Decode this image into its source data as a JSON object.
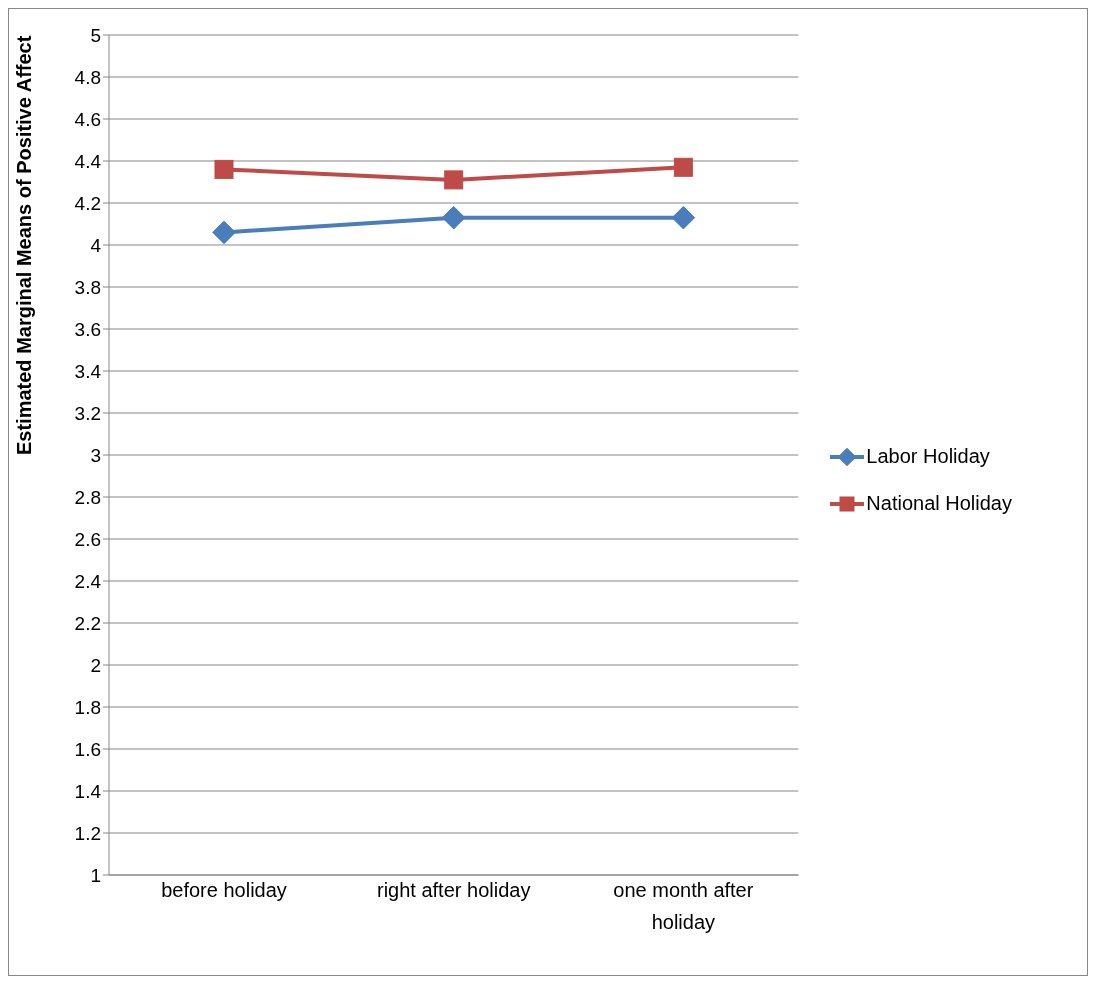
{
  "chart_data": {
    "type": "line",
    "ylabel": "Estimated Marginal Means of Positive Affect",
    "categories": [
      "before holiday",
      "right after holiday",
      "one month after holiday"
    ],
    "series": [
      {
        "name": "Labor Holiday",
        "color": "#4a7ebb",
        "marker": "diamond",
        "values": [
          4.06,
          4.13,
          4.13
        ]
      },
      {
        "name": "National Holiday",
        "color": "#be4b48",
        "marker": "square",
        "values": [
          4.36,
          4.31,
          4.37
        ]
      }
    ],
    "ylim": [
      1,
      5
    ],
    "yticks": [
      1,
      1.2,
      1.4,
      1.6,
      1.8,
      2,
      2.2,
      2.4,
      2.6,
      2.8,
      3,
      3.2,
      3.4,
      3.6,
      3.8,
      4,
      4.2,
      4.4,
      4.6,
      4.8,
      5
    ],
    "grid": "y",
    "legend": "right",
    "line_style": "solid"
  }
}
